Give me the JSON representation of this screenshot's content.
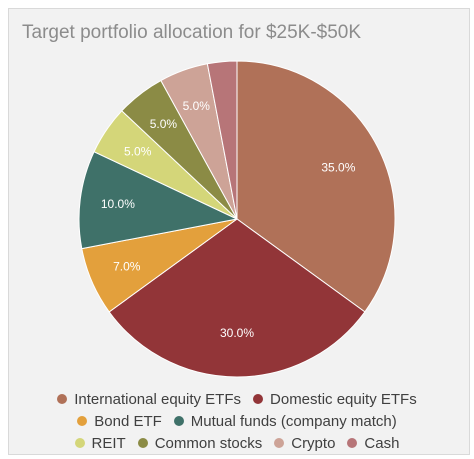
{
  "chart_data": {
    "type": "pie",
    "title": "Target portfolio allocation for $25K-$50K",
    "categories": [
      "International equity ETFs",
      "Domestic equity ETFs",
      "Bond ETF",
      "Mutual funds (company match)",
      "REIT",
      "Common stocks",
      "Crypto",
      "Cash"
    ],
    "values": [
      35,
      30,
      7,
      10,
      5,
      5,
      5,
      3
    ],
    "data_labels": [
      "35.0%",
      "30.0%",
      "7.0%",
      "10.0%",
      "5.0%",
      "5.0%",
      "5.0%",
      ""
    ],
    "colors": [
      "#b07158",
      "#923538",
      "#e3a03c",
      "#3f7169",
      "#d4d679",
      "#8b8b45",
      "#cda397",
      "#b77578"
    ],
    "legend_position": "bottom",
    "label_color": "#ffffff",
    "start_angle": "12 o'clock, clockwise"
  }
}
